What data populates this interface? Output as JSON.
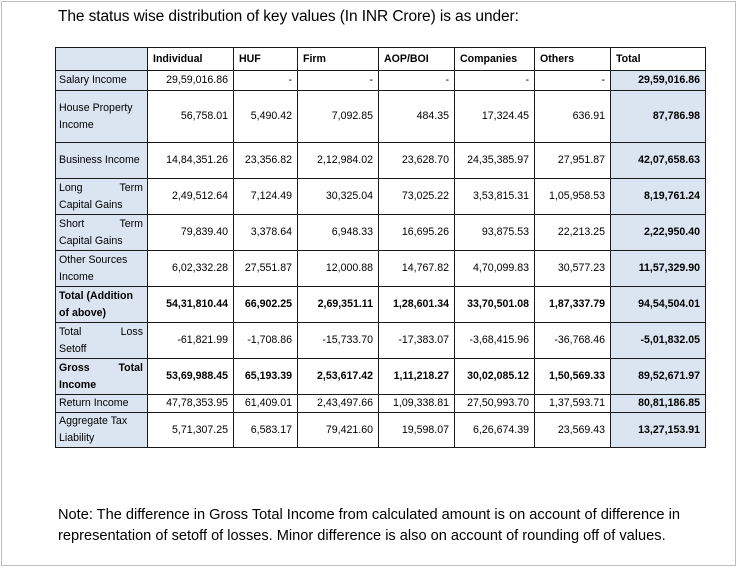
{
  "heading": "The status wise distribution of key values (In INR Crore) is as under:",
  "table": {
    "columns": [
      "",
      "Individual",
      "HUF",
      "Firm",
      "AOP/BOI",
      "Companies",
      "Others",
      "Total"
    ],
    "rows": [
      {
        "label": "Salary Income",
        "values": [
          "29,59,016.86",
          "-",
          "-",
          "-",
          "-",
          "-",
          "29,59,016.86"
        ]
      },
      {
        "label": "House Property Income",
        "values": [
          "56,758.01",
          "5,490.42",
          "7,092.85",
          "484.35",
          "17,324.45",
          "636.91",
          "87,786.98"
        ]
      },
      {
        "label": "Business Income",
        "values": [
          "14,84,351.26",
          "23,356.82",
          "2,12,984.02",
          "23,628.70",
          "24,35,385.97",
          "27,951.87",
          "42,07,658.63"
        ]
      },
      {
        "label": "Long Term Capital Gains",
        "values": [
          "2,49,512.64",
          "7,124.49",
          "30,325.04",
          "73,025.22",
          "3,53,815.31",
          "1,05,958.53",
          "8,19,761.24"
        ]
      },
      {
        "label": "Short Term Capital Gains",
        "values": [
          "79,839.40",
          "3,378.64",
          "6,948.33",
          "16,695.26",
          "93,875.53",
          "22,213.25",
          "2,22,950.40"
        ]
      },
      {
        "label": "Other Sources Income",
        "values": [
          "6,02,332.28",
          "27,551.87",
          "12,000.88",
          "14,767.82",
          "4,70,099.83",
          "30,577.23",
          "11,57,329.90"
        ]
      },
      {
        "label": "Total (Addition of above)",
        "values": [
          "54,31,810.44",
          "66,902.25",
          "2,69,351.11",
          "1,28,601.34",
          "33,70,501.08",
          "1,87,337.79",
          "94,54,504.01"
        ],
        "bold": true
      },
      {
        "label": "Total Loss Setoff",
        "values": [
          "-61,821.99",
          "-1,708.86",
          "-15,733.70",
          "-17,383.07",
          "-3,68,415.96",
          "-36,768.46",
          "-5,01,832.05"
        ]
      },
      {
        "label": "Gross Total Income",
        "values": [
          "53,69,988.45",
          "65,193.39",
          "2,53,617.42",
          "1,11,218.27",
          "30,02,085.12",
          "1,50,569.33",
          "89,52,671.97"
        ],
        "bold": true
      },
      {
        "label": "Return Income",
        "values": [
          "47,78,353.95",
          "61,409.01",
          "2,43,497.66",
          "1,09,338.81",
          "27,50,993.70",
          "1,37,593.71",
          "80,81,186.85"
        ]
      },
      {
        "label": "Aggregate Tax Liability",
        "values": [
          "5,71,307.25",
          "6,583.17",
          "79,421.60",
          "19,598.07",
          "6,26,674.39",
          "23,569.43",
          "13,27,153.91"
        ]
      }
    ]
  },
  "note": "Note: The difference in Gross Total Income from calculated amount is on account of difference in representation of setoff of losses. Minor difference is also on account of rounding off of values.",
  "colors": {
    "shade": "#dbe5f1",
    "border": "#1a1a1a"
  }
}
